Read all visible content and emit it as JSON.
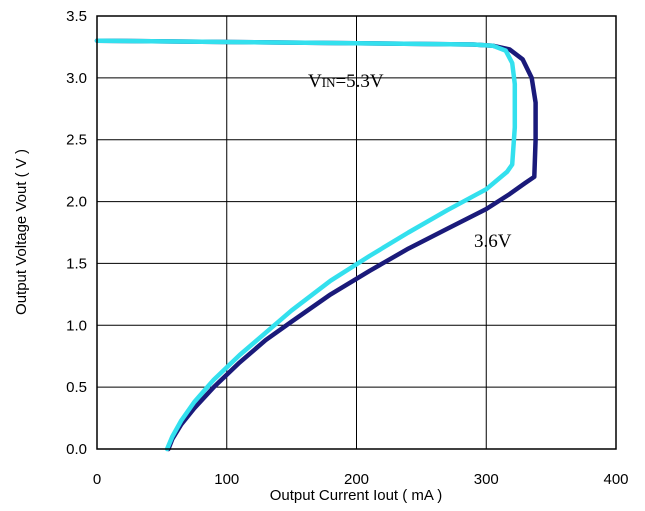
{
  "chart_data": {
    "type": "line",
    "title": "",
    "xlabel": "Output Current Iout ( mA )",
    "ylabel": "Output Voltage Vout ( V )",
    "xlim": [
      0,
      400
    ],
    "ylim": [
      0,
      3.5
    ],
    "xticks": [
      "0",
      "100",
      "200",
      "300",
      "400"
    ],
    "yticks": [
      "0.0",
      "0.5",
      "1.0",
      "1.5",
      "2.0",
      "2.5",
      "3.0",
      "3.5"
    ],
    "grid": true,
    "series": [
      {
        "name": "3.6V",
        "color": "#1a1a7a",
        "x": [
          0,
          100,
          200,
          290,
          305,
          318,
          328,
          335,
          338,
          338,
          337,
          330,
          318,
          300,
          270,
          240,
          210,
          180,
          150,
          130,
          110,
          90,
          75,
          65,
          58,
          55
        ],
        "y": [
          3.3,
          3.29,
          3.28,
          3.27,
          3.26,
          3.23,
          3.15,
          3.0,
          2.8,
          2.5,
          2.2,
          2.15,
          2.06,
          1.94,
          1.78,
          1.62,
          1.44,
          1.25,
          1.03,
          0.88,
          0.7,
          0.5,
          0.33,
          0.2,
          0.08,
          0.0
        ]
      },
      {
        "name": "VIN=5.3V",
        "color": "#33e0ee",
        "x": [
          0,
          100,
          200,
          290,
          305,
          315,
          320,
          322,
          322,
          320,
          316,
          300,
          270,
          240,
          210,
          180,
          150,
          130,
          110,
          90,
          75,
          65,
          58,
          54
        ],
        "y": [
          3.3,
          3.29,
          3.28,
          3.27,
          3.26,
          3.22,
          3.12,
          2.95,
          2.6,
          2.3,
          2.24,
          2.1,
          1.93,
          1.75,
          1.56,
          1.36,
          1.12,
          0.94,
          0.76,
          0.56,
          0.38,
          0.23,
          0.1,
          0.0
        ]
      }
    ],
    "annotations": [
      {
        "text": "V",
        "subtext": "IN",
        "tail": "=5.3V",
        "series": 1
      },
      {
        "text": "3.6V",
        "series": 0
      }
    ]
  }
}
